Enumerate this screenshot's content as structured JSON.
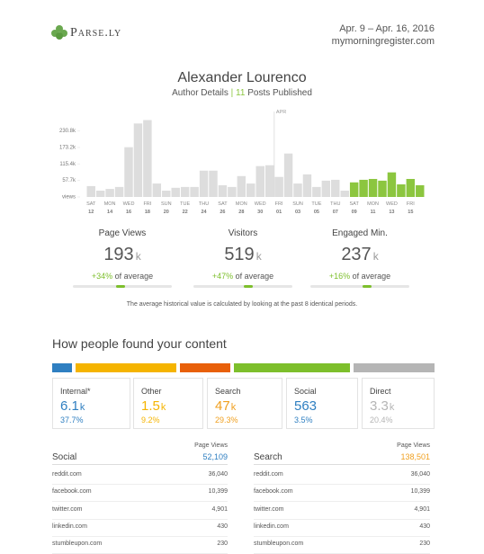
{
  "header": {
    "logo": "Parse.ly",
    "date_range": "Apr. 9 – Apr. 16, 2016",
    "site": "mymorningregister.com"
  },
  "author": {
    "name": "Alexander Lourenco",
    "details": "Author Details",
    "separator": "|",
    "posts": "11",
    "posts_label": "Posts Published"
  },
  "chart_data": {
    "type": "bar",
    "weekday_labels": [
      "SAT",
      null,
      "MON",
      null,
      "WED",
      null,
      "FRI",
      null,
      "SUN",
      null,
      "TUE",
      null,
      "THU",
      null,
      "SAT",
      null,
      "MON",
      null,
      "WED",
      null,
      "FRI",
      null,
      "SUN",
      null,
      "TUE",
      null,
      "THU",
      null,
      "SAT",
      null,
      "MON",
      null,
      "WED",
      null,
      "FRI",
      null
    ],
    "day_labels": [
      "12",
      null,
      "14",
      null,
      "16",
      null,
      "18",
      null,
      "20",
      null,
      "22",
      null,
      "24",
      null,
      "26",
      null,
      "28",
      null,
      "30",
      null,
      "01",
      null,
      "03",
      null,
      "05",
      null,
      "07",
      null,
      "09",
      null,
      "11",
      null,
      "13",
      null,
      "15",
      null
    ],
    "values": [
      38000,
      22000,
      28000,
      35000,
      174000,
      257000,
      269000,
      47000,
      22000,
      32000,
      35000,
      35000,
      92000,
      92000,
      41000,
      35000,
      73000,
      47000,
      108000,
      111000,
      70000,
      152000,
      47000,
      79000,
      35000,
      57000,
      60000,
      22000,
      51000,
      60000,
      63000,
      57000,
      86000,
      44000,
      63000,
      41000
    ],
    "bar_colors": [
      "#dddddd",
      "#dddddd",
      "#dddddd",
      "#dddddd",
      "#dddddd",
      "#dddddd",
      "#dddddd",
      "#dddddd",
      "#dddddd",
      "#dddddd",
      "#dddddd",
      "#dddddd",
      "#dddddd",
      "#dddddd",
      "#dddddd",
      "#dddddd",
      "#dddddd",
      "#dddddd",
      "#dddddd",
      "#dddddd",
      "#dddddd",
      "#dddddd",
      "#dddddd",
      "#dddddd",
      "#dddddd",
      "#dddddd",
      "#dddddd",
      "#dddddd",
      "#8cc63f",
      "#8cc63f",
      "#8cc63f",
      "#8cc63f",
      "#8cc63f",
      "#8cc63f",
      "#8cc63f",
      "#8cc63f"
    ],
    "month_marker": "APR",
    "ylim": [
      0,
      280000
    ],
    "yticks": [
      {
        "value": 0,
        "label": "views"
      },
      {
        "value": 57700,
        "label": "57.7k"
      },
      {
        "value": 115400,
        "label": "115.4k"
      },
      {
        "value": 173200,
        "label": "173.2k"
      },
      {
        "value": 230800,
        "label": "230.8k"
      }
    ]
  },
  "stats": [
    {
      "label": "Page Views",
      "value": "193",
      "unit": "k",
      "change": "+34%",
      "change_suffix": "of average"
    },
    {
      "label": "Visitors",
      "value": "519",
      "unit": "k",
      "change": "+47%",
      "change_suffix": "of average"
    },
    {
      "label": "Engaged Min.",
      "value": "237",
      "unit": "k",
      "change": "+16%",
      "change_suffix": "of average"
    }
  ],
  "note": "The average historical value is calculated by looking at the past 8 identical periods.",
  "referrals": {
    "title": "How people found your content",
    "cards": [
      {
        "label": "Internal*",
        "value": "6.1",
        "unit": "k",
        "percent": "37.7%",
        "color": "#2f7fc1"
      },
      {
        "label": "Other",
        "value": "1.5",
        "unit": "k",
        "percent": "9.2%",
        "color": "#f5b400"
      },
      {
        "label": "Search",
        "value": "47",
        "unit": "k",
        "percent": "29.3%",
        "color": "#f0a020"
      },
      {
        "label": "Social",
        "value": "563",
        "percent": "3.5%",
        "color": "#2f7fc1"
      },
      {
        "label": "Direct",
        "value": "3.3",
        "unit": "k",
        "percent": "20.4%",
        "color": "#b5b5b5"
      }
    ]
  },
  "tables": [
    {
      "title": "Social",
      "column": "Page Views",
      "total": "52,109",
      "total_color": "#2f7fc1",
      "rows": [
        [
          "reddit.com",
          "36,040"
        ],
        [
          "facebook.com",
          "10,399"
        ],
        [
          "twitter.com",
          "4,901"
        ],
        [
          "linkedin.com",
          "430"
        ],
        [
          "stumbleupon.com",
          "230"
        ]
      ]
    },
    {
      "title": "Search",
      "column": "Page Views",
      "total": "138,501",
      "total_color": "#f0a020",
      "rows": [
        [
          "reddit.com",
          "36,040"
        ],
        [
          "facebook.com",
          "10,399"
        ],
        [
          "twitter.com",
          "4,901"
        ],
        [
          "linkedin.com",
          "430"
        ],
        [
          "stumbleupon.com",
          "230"
        ]
      ]
    }
  ]
}
